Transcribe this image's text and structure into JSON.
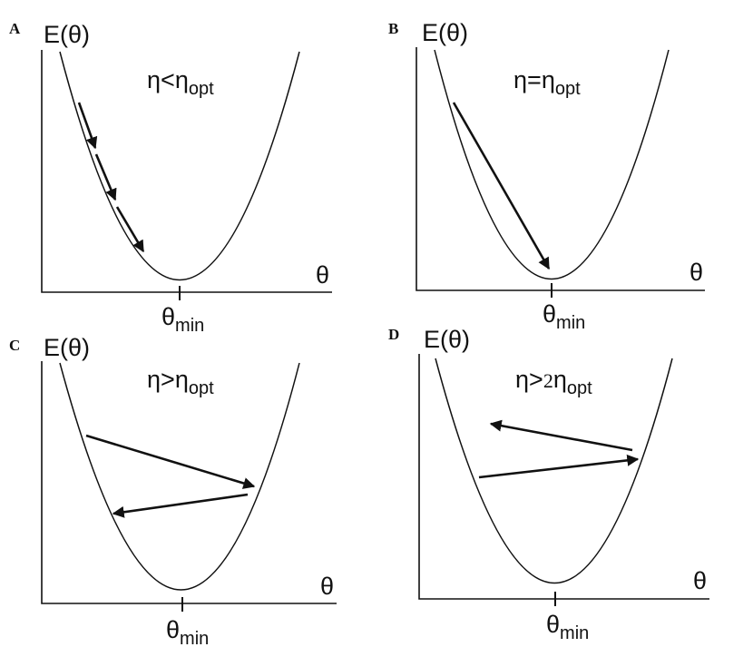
{
  "panels": [
    {
      "letter": "A",
      "ylabel": "E(θ)",
      "xlabel": "θ",
      "tick_label": {
        "main": "θ",
        "sub": "min"
      },
      "condition": {
        "eta": "η",
        "rel": "<",
        "coef": "",
        "eta2": "η",
        "sub": "opt"
      }
    },
    {
      "letter": "B",
      "ylabel": "E(θ)",
      "xlabel": "θ",
      "tick_label": {
        "main": "θ",
        "sub": "min"
      },
      "condition": {
        "eta": "η",
        "rel": "=",
        "coef": "",
        "eta2": "η",
        "sub": "opt"
      }
    },
    {
      "letter": "C",
      "ylabel": "E(θ)",
      "xlabel": "θ",
      "tick_label": {
        "main": "θ",
        "sub": "min"
      },
      "condition": {
        "eta": "η",
        "rel": ">",
        "coef": "",
        "eta2": "η",
        "sub": "opt"
      }
    },
    {
      "letter": "D",
      "ylabel": "E(θ)",
      "xlabel": "θ",
      "tick_label": {
        "main": "θ",
        "sub": "min"
      },
      "condition": {
        "eta": "η",
        "rel": ">",
        "coef": "2",
        "eta2": "η",
        "sub": "opt"
      }
    }
  ]
}
